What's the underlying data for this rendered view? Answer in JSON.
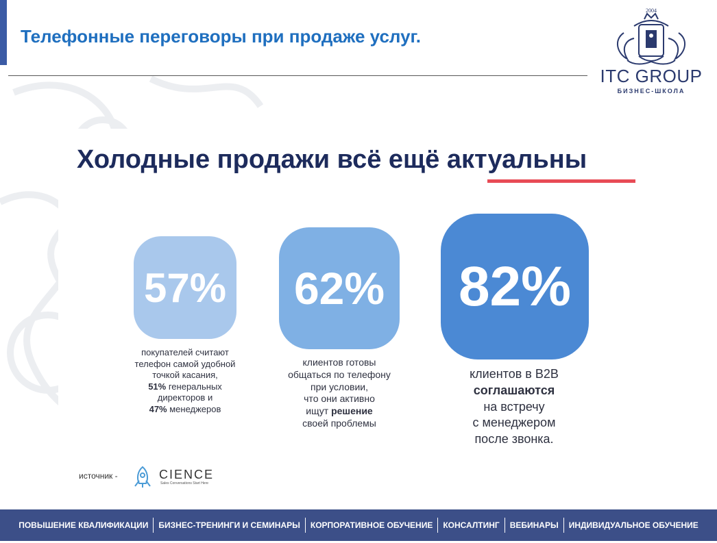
{
  "header": {
    "title": "Телефонные переговоры при продаже услуг."
  },
  "logo": {
    "year": "2004",
    "name": "ITC GROUP",
    "subtitle": "БИЗНЕС-ШКОЛА"
  },
  "slide": {
    "headline_prefix": "Холодные продажи всё ещё",
    "headline_accent": "актуальны",
    "stats": [
      {
        "value": "57%",
        "lines": [
          "покупателей считают",
          "телефон самой удобной",
          "точкой касания,"
        ],
        "bold1": "51%",
        "line4_rest": " генеральных",
        "line5": "директоров и",
        "bold2": "47%",
        "line6_rest": " менеджеров"
      },
      {
        "value": "62%",
        "lines": [
          "клиентов готовы",
          "общаться по телефону",
          "при условии,",
          "что они активно"
        ],
        "line5_pre": "ищут ",
        "bold": "решение",
        "line6": "своей проблемы"
      },
      {
        "value": "82%",
        "line1": "клиентов в B2B",
        "bold": "соглашаются",
        "lines": [
          "на встречу",
          "с менеджером",
          "после звонка."
        ]
      }
    ],
    "source_label": "источник -",
    "source_brand": "CIENCE",
    "source_tagline": "Sales Conversations Start Here"
  },
  "footer": {
    "items": [
      "ПОВЫШЕНИЕ КВАЛИФИКАЦИИ",
      "БИЗНЕС-ТРЕНИНГИ И СЕМИНАРЫ",
      "КОРПОРАТИВНОЕ ОБУЧЕНИЕ",
      "КОНСАЛТИНГ",
      "ВЕБИНАРЫ",
      "ИНДИВИДУАЛЬНОЕ ОБУЧЕНИЕ"
    ]
  },
  "colors": {
    "accent_red": "#e84b55",
    "navy": "#1d2b5c",
    "title_blue": "#1f6fbf",
    "footer_bg": "#3c4f88"
  }
}
